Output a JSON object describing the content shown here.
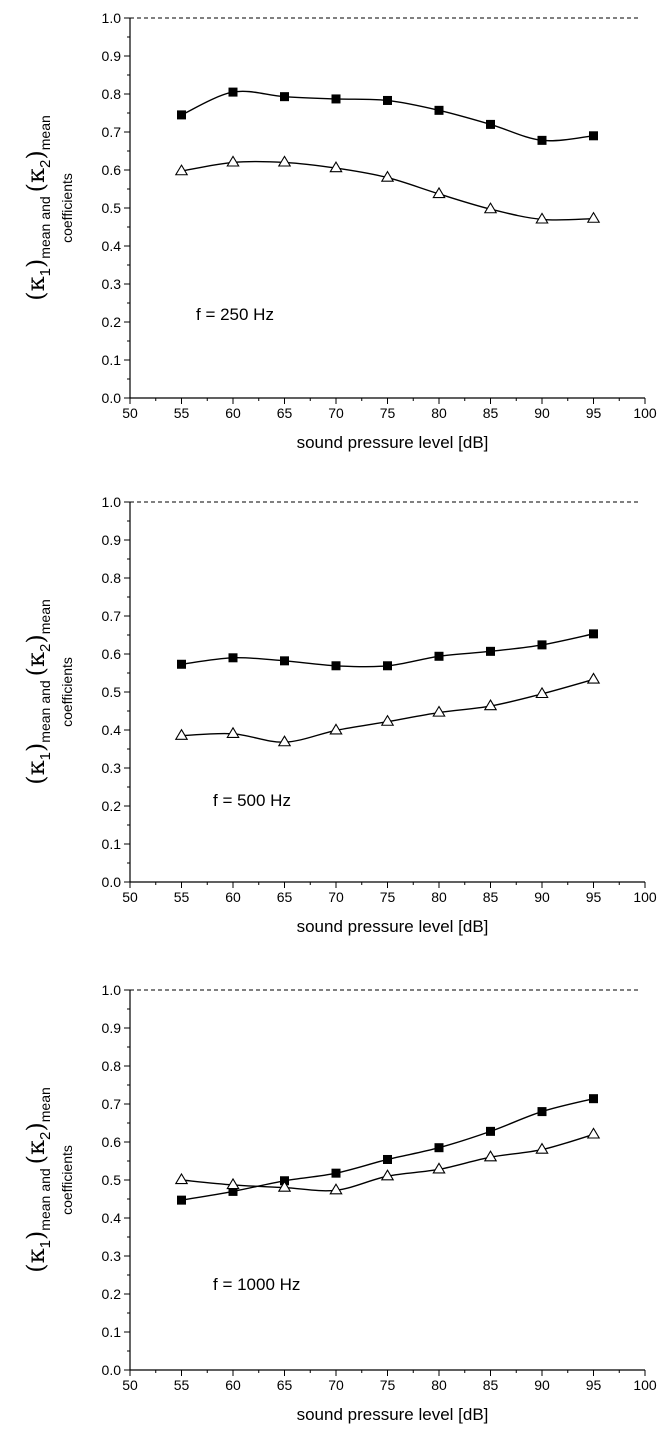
{
  "chart_data": [
    {
      "type": "line",
      "annotation": "f = 250 Hz",
      "xlabel": "sound pressure level  [dB]",
      "ylabel_lines": {
        "kappa1": "κ",
        "sub1": "1",
        "mean_a": "mean",
        "and": "and",
        "kappa2": "κ",
        "sub2": "2",
        "mean_b": "mean",
        "second_line": "coefficients"
      },
      "xlim": [
        50,
        100
      ],
      "ylim": [
        0.0,
        1.0
      ],
      "x_ticks": [
        "50",
        "55",
        "60",
        "65",
        "70",
        "75",
        "80",
        "85",
        "90",
        "95",
        "100"
      ],
      "y_ticks": [
        "0.0",
        "0.1",
        "0.2",
        "0.3",
        "0.4",
        "0.5",
        "0.6",
        "0.7",
        "0.8",
        "0.9",
        "1.0"
      ],
      "reference_line": 1.0,
      "x": [
        55,
        60,
        65,
        70,
        75,
        80,
        85,
        90,
        95
      ],
      "series": [
        {
          "marker": "filled-square",
          "values": [
            0.745,
            0.805,
            0.793,
            0.787,
            0.783,
            0.757,
            0.72,
            0.678,
            0.69
          ]
        },
        {
          "marker": "open-triangle",
          "values": [
            0.597,
            0.62,
            0.62,
            0.605,
            0.58,
            0.537,
            0.497,
            0.47,
            0.472
          ]
        }
      ]
    },
    {
      "type": "line",
      "annotation": "f = 500 Hz",
      "xlabel": "sound pressure level  [dB]",
      "ylabel_lines": {
        "kappa1": "κ",
        "sub1": "1",
        "mean_a": "mean",
        "and": "and",
        "kappa2": "κ",
        "sub2": "2",
        "mean_b": "mean",
        "second_line": "coefficients"
      },
      "xlim": [
        50,
        100
      ],
      "ylim": [
        0.0,
        1.0
      ],
      "x_ticks": [
        "50",
        "55",
        "60",
        "65",
        "70",
        "75",
        "80",
        "85",
        "90",
        "95",
        "100"
      ],
      "y_ticks": [
        "0.0",
        "0.1",
        "0.2",
        "0.3",
        "0.4",
        "0.5",
        "0.6",
        "0.7",
        "0.8",
        "0.9",
        "1.0"
      ],
      "reference_line": 1.0,
      "x": [
        55,
        60,
        65,
        70,
        75,
        80,
        85,
        90,
        95
      ],
      "series": [
        {
          "marker": "filled-square",
          "values": [
            0.573,
            0.59,
            0.582,
            0.569,
            0.569,
            0.594,
            0.607,
            0.624,
            0.653
          ]
        },
        {
          "marker": "open-triangle",
          "values": [
            0.385,
            0.39,
            0.368,
            0.399,
            0.422,
            0.446,
            0.463,
            0.495,
            0.533
          ]
        }
      ]
    },
    {
      "type": "line",
      "annotation": "f = 1000 Hz",
      "xlabel": "sound pressure level  [dB]",
      "ylabel_lines": {
        "kappa1": "κ",
        "sub1": "1",
        "mean_a": "mean",
        "and": "and",
        "kappa2": "κ",
        "sub2": "2",
        "mean_b": "mean",
        "second_line": "coefficients"
      },
      "xlim": [
        50,
        100
      ],
      "ylim": [
        0.0,
        1.0
      ],
      "x_ticks": [
        "50",
        "55",
        "60",
        "65",
        "70",
        "75",
        "80",
        "85",
        "90",
        "95",
        "100"
      ],
      "y_ticks": [
        "0.0",
        "0.1",
        "0.2",
        "0.3",
        "0.4",
        "0.5",
        "0.6",
        "0.7",
        "0.8",
        "0.9",
        "1.0"
      ],
      "reference_line": 1.0,
      "x": [
        55,
        60,
        65,
        70,
        75,
        80,
        85,
        90,
        95
      ],
      "series": [
        {
          "marker": "filled-square",
          "values": [
            0.447,
            0.47,
            0.498,
            0.518,
            0.554,
            0.585,
            0.628,
            0.68,
            0.714
          ]
        },
        {
          "marker": "open-triangle",
          "values": [
            0.5,
            0.487,
            0.48,
            0.473,
            0.51,
            0.528,
            0.56,
            0.58,
            0.62
          ]
        }
      ]
    }
  ]
}
